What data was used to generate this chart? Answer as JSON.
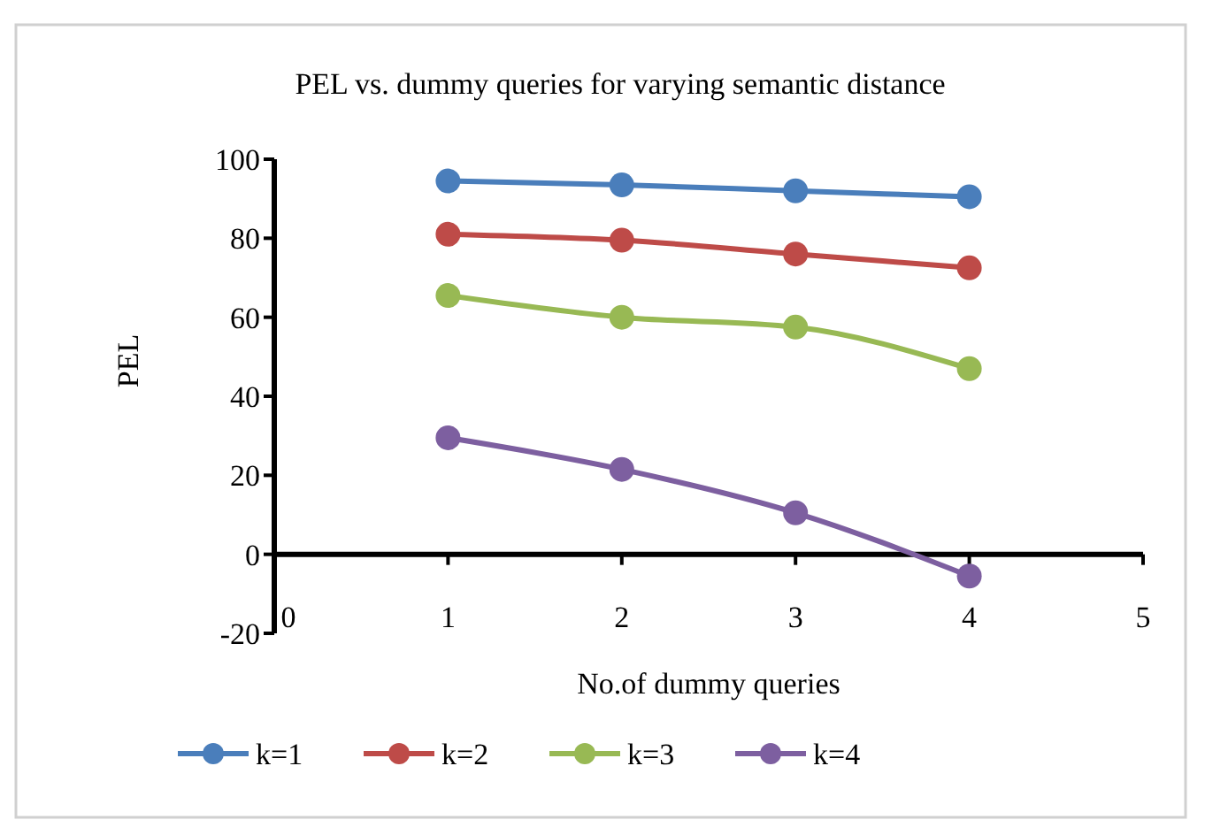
{
  "chart_data": {
    "type": "line",
    "title": "PEL vs. dummy queries for varying semantic distance",
    "xlabel": "No.of dummy queries",
    "ylabel": "PEL",
    "x": [
      1,
      2,
      3,
      4
    ],
    "xlim": [
      0,
      5
    ],
    "xticks": [
      0,
      1,
      2,
      3,
      4,
      5
    ],
    "ylim": [
      -20,
      100
    ],
    "yticks": [
      -20,
      0,
      20,
      40,
      60,
      80,
      100
    ],
    "series": [
      {
        "name": "k=1",
        "color": "#4a7ebb",
        "values": [
          94.5,
          93.5,
          92,
          90.5
        ]
      },
      {
        "name": "k=2",
        "color": "#be4b48",
        "values": [
          81,
          79.5,
          76,
          72.5
        ]
      },
      {
        "name": "k=3",
        "color": "#98b954",
        "values": [
          65.5,
          60,
          57.5,
          47
        ]
      },
      {
        "name": "k=4",
        "color": "#7d5fa0",
        "values": [
          29.5,
          21.5,
          10.5,
          -5.5
        ]
      }
    ],
    "marker": "circle",
    "line_style": "solid",
    "legend": "bottom",
    "grid": false
  }
}
